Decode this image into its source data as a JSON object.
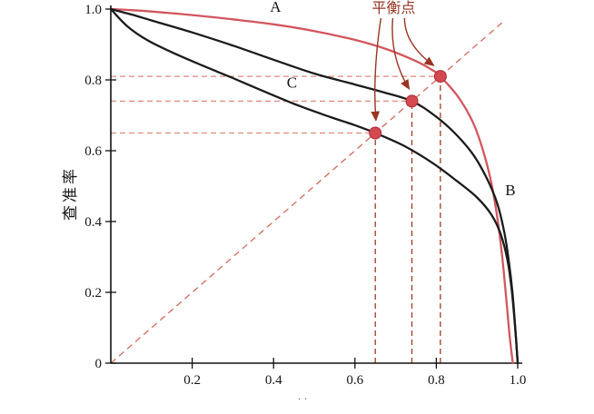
{
  "figure": {
    "background": "#ffffff",
    "artifacts": {
      "bottom_marks": "· ·"
    }
  },
  "chart_data": {
    "type": "line",
    "title": "",
    "xlabel": "",
    "ylabel": "查准率",
    "xlim": [
      0,
      1
    ],
    "ylim": [
      0,
      1
    ],
    "grid": false,
    "legend": "none",
    "x_ticks": [
      "0.2",
      "0.4",
      "0.6",
      "0.8",
      "1.0"
    ],
    "x_tick_values": [
      0.2,
      0.4,
      0.6,
      0.8,
      1.0
    ],
    "y_ticks": [
      "0",
      "0.2",
      "0.4",
      "0.6",
      "0.8",
      "1.0"
    ],
    "y_tick_values": [
      0,
      0.2,
      0.4,
      0.6,
      0.8,
      1.0
    ],
    "series": [
      {
        "name": "A",
        "color": "#d2565e",
        "label_pos": [
          0.405,
          0.992
        ],
        "points": [
          [
            0,
            1.0
          ],
          [
            0.05,
            0.997
          ],
          [
            0.1,
            0.993
          ],
          [
            0.2,
            0.983
          ],
          [
            0.3,
            0.971
          ],
          [
            0.4,
            0.957
          ],
          [
            0.5,
            0.938
          ],
          [
            0.6,
            0.913
          ],
          [
            0.68,
            0.886
          ],
          [
            0.75,
            0.853
          ],
          [
            0.79,
            0.828
          ],
          [
            0.81,
            0.81
          ],
          [
            0.855,
            0.75
          ],
          [
            0.89,
            0.68
          ],
          [
            0.915,
            0.6
          ],
          [
            0.935,
            0.51
          ],
          [
            0.95,
            0.41
          ],
          [
            0.962,
            0.3
          ],
          [
            0.972,
            0.18
          ],
          [
            0.98,
            0.08
          ],
          [
            0.988,
            0
          ]
        ]
      },
      {
        "name": "B",
        "color": "#1b1b1b",
        "label_pos": [
          0.982,
          0.475
        ],
        "points": [
          [
            0,
            1.0
          ],
          [
            0.05,
            0.985
          ],
          [
            0.1,
            0.968
          ],
          [
            0.2,
            0.934
          ],
          [
            0.3,
            0.897
          ],
          [
            0.4,
            0.857
          ],
          [
            0.5,
            0.818
          ],
          [
            0.6,
            0.787
          ],
          [
            0.67,
            0.765
          ],
          [
            0.74,
            0.74
          ],
          [
            0.795,
            0.7
          ],
          [
            0.845,
            0.65
          ],
          [
            0.89,
            0.59
          ],
          [
            0.925,
            0.52
          ],
          [
            0.95,
            0.45
          ],
          [
            0.967,
            0.37
          ],
          [
            0.978,
            0.29
          ],
          [
            0.987,
            0.2
          ],
          [
            0.994,
            0.1
          ],
          [
            1.0,
            0
          ]
        ]
      },
      {
        "name": "C",
        "color": "#1b1b1b",
        "label_pos": [
          0.445,
          0.778
        ],
        "points": [
          [
            0,
            1.0
          ],
          [
            0.04,
            0.952
          ],
          [
            0.09,
            0.912
          ],
          [
            0.15,
            0.878
          ],
          [
            0.22,
            0.843
          ],
          [
            0.3,
            0.805
          ],
          [
            0.38,
            0.766
          ],
          [
            0.46,
            0.728
          ],
          [
            0.54,
            0.695
          ],
          [
            0.6,
            0.672
          ],
          [
            0.65,
            0.65
          ],
          [
            0.72,
            0.614
          ],
          [
            0.79,
            0.566
          ],
          [
            0.85,
            0.515
          ],
          [
            0.9,
            0.468
          ],
          [
            0.935,
            0.42
          ],
          [
            0.958,
            0.365
          ],
          [
            0.975,
            0.29
          ],
          [
            0.985,
            0.21
          ],
          [
            0.993,
            0.11
          ],
          [
            1.0,
            0
          ]
        ]
      }
    ],
    "break_even": {
      "label": "平衡点",
      "label_pos": [
        0.695,
        0.99
      ],
      "label_color": "#993522",
      "marker_color": "#d4494f",
      "marker_edge": "#a82d35",
      "points": [
        [
          0.65,
          0.65
        ],
        [
          0.74,
          0.74
        ],
        [
          0.81,
          0.81
        ]
      ]
    },
    "guides": {
      "diagonal": [
        [
          0,
          0
        ],
        [
          0.97,
          0.97
        ]
      ],
      "diagonal_color": "#cf6a5c",
      "h_color": "#df8a7d",
      "v_color": "#a03b20"
    }
  }
}
